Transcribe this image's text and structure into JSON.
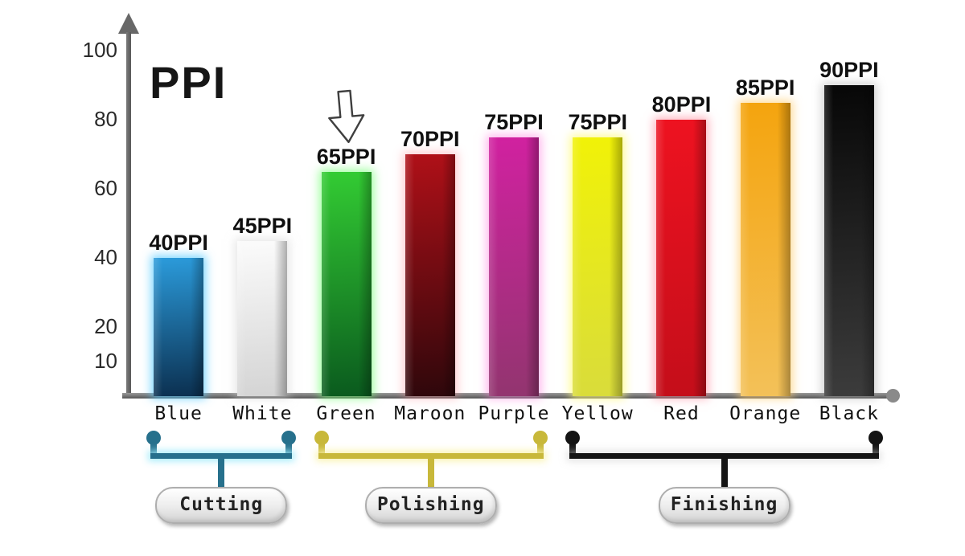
{
  "chart_data": {
    "type": "bar",
    "title": "PPI",
    "xlabel": "",
    "ylabel": "PPI",
    "ylim": [
      0,
      105
    ],
    "grid": false,
    "legend": false,
    "y_ticks": [
      100,
      80,
      60,
      40,
      20,
      10
    ],
    "categories": [
      "Blue",
      "White",
      "Green",
      "Maroon",
      "Purple",
      "Yellow",
      "Red",
      "Orange",
      "Black"
    ],
    "values": [
      40,
      45,
      65,
      70,
      75,
      75,
      80,
      85,
      90
    ],
    "bar_value_labels": [
      "40PPI",
      "45PPI",
      "65PPI",
      "70PPI",
      "75PPI",
      "75PPI",
      "80PPI",
      "85PPI",
      "90PPI"
    ],
    "bar_colors_top": [
      "#2B9BDB",
      "#FBFBFB",
      "#33CC33",
      "#B01018",
      "#D121A0",
      "#F1F207",
      "#EE1220",
      "#F4A40E",
      "#070707"
    ],
    "bar_colors_bottom": [
      "#0B2F4F",
      "#D4D4D4",
      "#0A5A1E",
      "#2E070B",
      "#92356F",
      "#D9DC3B",
      "#C40E1A",
      "#F3C159",
      "#3C3C3C"
    ],
    "bar_glows": [
      "rgba(80,200,255,0.75)",
      "rgba(210,210,210,0.55)",
      "rgba(110,255,110,0.65)",
      "rgba(255,140,150,0.45)",
      "rgba(255,120,220,0.55)",
      "rgba(255,250,120,0.80)",
      "rgba(255,120,140,0.55)",
      "rgba(255,205,110,0.70)",
      "rgba(150,150,150,0.45)"
    ],
    "annotation": {
      "type": "down-arrow",
      "target_category": "Green",
      "target_index": 2
    },
    "groups": [
      {
        "label": "Cutting",
        "from": 0,
        "to": 1,
        "color": "#26708C",
        "glow": "rgba(160,235,250,0.9)"
      },
      {
        "label": "Polishing",
        "from": 2,
        "to": 4,
        "color": "#C8B83A",
        "glow": "rgba(248,242,170,0.9)"
      },
      {
        "label": "Finishing",
        "from": 5,
        "to": 8,
        "color": "#141414",
        "glow": "rgba(200,200,200,0.5)"
      }
    ],
    "axis_color": "#686868"
  }
}
